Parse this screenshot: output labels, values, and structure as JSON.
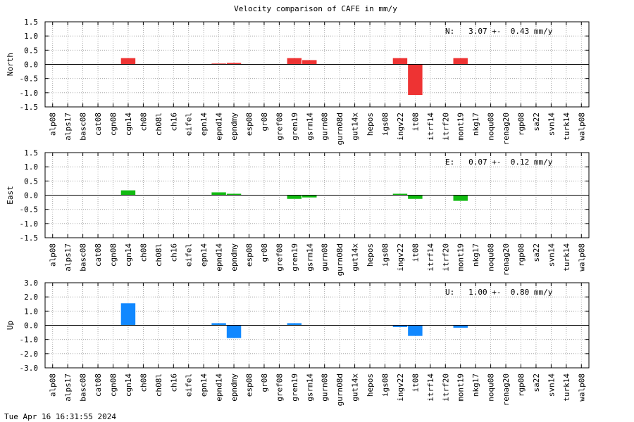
{
  "chart_data": {
    "type": "bar",
    "title": "Velocity comparison of CAFE in mm/y",
    "categories": [
      "alp08",
      "alps17",
      "basc08",
      "cat08",
      "cgn08",
      "cgn14",
      "ch08",
      "ch08l",
      "ch16",
      "eifel",
      "epn14",
      "epnd14",
      "epndmy",
      "esp08",
      "gr08",
      "gref08",
      "gren19",
      "gsrm14",
      "gurn08",
      "gurn08d",
      "gut14x",
      "hepos",
      "igs08",
      "ingv22",
      "it08",
      "itrf14",
      "itrf20",
      "mont19",
      "nkg17",
      "noqu08",
      "renag20",
      "rgp08",
      "sa22",
      "svn14",
      "turk14",
      "walp08"
    ],
    "panels": [
      {
        "ylabel": "North",
        "color": "#ee3333",
        "ylim": [
          -1.5,
          1.5
        ],
        "yticks": [
          "1.5",
          "1.0",
          "0.5",
          "0.0",
          "-0.5",
          "-1.0",
          "-1.5"
        ],
        "annotation": "N:   3.07 +-  0.43 mm/y",
        "values": [
          0,
          0,
          0,
          0,
          0,
          0.22,
          0,
          0,
          0,
          0,
          0,
          0.03,
          0.05,
          0,
          0,
          0,
          0.22,
          0.15,
          0,
          0,
          0,
          0,
          0,
          0.22,
          -1.08,
          0,
          0,
          0.22,
          0,
          0,
          0,
          0,
          0,
          0,
          0,
          0
        ]
      },
      {
        "ylabel": "East",
        "color": "#11bb11",
        "ylim": [
          -1.5,
          1.5
        ],
        "yticks": [
          "1.5",
          "1.0",
          "0.5",
          "0.0",
          "-0.5",
          "-1.0",
          "-1.5"
        ],
        "annotation": "E:   0.07 +-  0.12 mm/y",
        "values": [
          0,
          0,
          0,
          0,
          0,
          0.17,
          0,
          0,
          0,
          0,
          0,
          0.1,
          0.05,
          0,
          0,
          0,
          -0.13,
          -0.08,
          0,
          0,
          0,
          0,
          0,
          0.05,
          -0.13,
          0,
          0,
          -0.2,
          0,
          0,
          0,
          0,
          0,
          0,
          0,
          0
        ]
      },
      {
        "ylabel": "Up",
        "color": "#1188ff",
        "ylim": [
          -3.0,
          3.0
        ],
        "yticks": [
          "3.0",
          "2.0",
          "1.0",
          "0.0",
          "-1.0",
          "-2.0",
          "-3.0"
        ],
        "annotation": "U:   1.00 +-  0.80 mm/y",
        "values": [
          0,
          0,
          0,
          0,
          0,
          1.55,
          0,
          0,
          0,
          0,
          0,
          0.15,
          -0.9,
          0,
          0,
          0,
          0.15,
          0,
          0,
          0,
          0,
          0,
          0,
          -0.12,
          -0.75,
          0,
          0,
          -0.17,
          0,
          0,
          0,
          0,
          0,
          0,
          0,
          0
        ]
      }
    ],
    "grid": true
  },
  "footer": {
    "timestamp": "Tue Apr 16 16:31:55 2024"
  }
}
